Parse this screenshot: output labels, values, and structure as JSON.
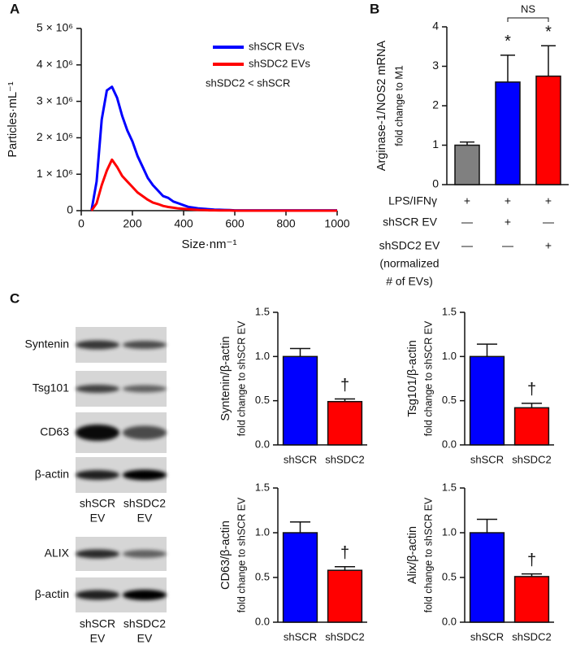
{
  "chart_data": [
    {
      "type": "line",
      "panel": "A",
      "xlabel": "Size·nm⁻¹",
      "ylabel_lines": [
        "Particles·mL⁻¹"
      ],
      "annotation": "shSDC2 < shSCR",
      "x": [
        40,
        60,
        80,
        100,
        120,
        140,
        160,
        180,
        200,
        220,
        240,
        260,
        280,
        300,
        320,
        340,
        360,
        380,
        400,
        420,
        440,
        460,
        480,
        500,
        520,
        540,
        560,
        580,
        600,
        620,
        640,
        660,
        680,
        700,
        720,
        740,
        760,
        780,
        800,
        820,
        840,
        860,
        880,
        900,
        920,
        940,
        960,
        980,
        1000
      ],
      "series": [
        {
          "name": "shSCR EVs",
          "color": "#0000ff",
          "values": [
            0,
            800000,
            2500000,
            3300000,
            3400000,
            3100000,
            2600000,
            2200000,
            1900000,
            1500000,
            1200000,
            900000,
            700000,
            550000,
            400000,
            350000,
            250000,
            200000,
            150000,
            100000,
            80000,
            60000,
            50000,
            40000,
            30000,
            25000,
            20000,
            15000,
            10000,
            10000,
            10000,
            10000,
            10000,
            10000,
            10000,
            10000,
            10000,
            10000,
            10000,
            10000,
            10000,
            10000,
            10000,
            10000,
            10000,
            10000,
            10000,
            10000,
            10000
          ]
        },
        {
          "name": "shSDC2 EVs",
          "color": "#ff0000",
          "values": [
            0,
            200000,
            700000,
            1100000,
            1400000,
            1200000,
            950000,
            800000,
            650000,
            500000,
            400000,
            300000,
            220000,
            180000,
            130000,
            100000,
            80000,
            60000,
            50000,
            40000,
            30000,
            20000,
            15000,
            10000,
            10000,
            5000,
            5000,
            5000,
            0,
            0,
            0,
            0,
            0,
            0,
            0,
            0,
            0,
            0,
            0,
            0,
            0,
            0,
            0,
            0,
            0,
            0,
            0,
            0,
            0
          ]
        }
      ],
      "xlim": [
        0,
        1000
      ],
      "xticks": [
        0,
        200,
        400,
        600,
        800,
        1000
      ],
      "ylim": [
        0,
        5000000
      ],
      "yticks": [
        0,
        {
          "value": 1000000,
          "label": "1 × 10⁶"
        },
        {
          "value": 2000000,
          "label": "2 × 10⁶"
        },
        {
          "value": 3000000,
          "label": "3 × 10⁶"
        },
        {
          "value": 4000000,
          "label": "4 × 10⁶"
        },
        {
          "value": 5000000,
          "label": "5 × 10⁶"
        }
      ]
    },
    {
      "type": "bar",
      "panel": "B",
      "ylabel_lines": [
        "Arginase-1/NOS2 mRNA",
        "fold change to M1"
      ],
      "categories": [
        null,
        null,
        null
      ],
      "values": [
        1,
        2.6,
        2.75
      ],
      "errors": [
        0.08,
        0.68,
        0.77
      ],
      "colors": [
        "#808080",
        "#0000ff",
        "#ff0000"
      ],
      "markers": [
        null,
        "*",
        "*"
      ],
      "comparison": "NS",
      "ylim": [
        0,
        4
      ],
      "yticks": [
        0,
        1,
        2,
        3,
        4
      ],
      "conditions": [
        {
          "label_lines": [
            "LPS/IFNγ"
          ],
          "marks": [
            "+",
            "+",
            "+"
          ]
        },
        {
          "label_lines": [
            "shSCR EV"
          ],
          "marks": [
            "—",
            "+",
            "—"
          ]
        },
        {
          "label_lines": [
            "shSDC2 EV",
            "(normalized",
            "# of EVs)"
          ],
          "marks": [
            "—",
            "—",
            "+"
          ]
        }
      ]
    },
    {
      "type": "bar",
      "ylabel_lines": [
        "Syntenin/β-actin",
        "fold change to shSCR EV"
      ],
      "categories": [
        "shSCR",
        "shSDC2"
      ],
      "values": [
        1,
        0.49
      ],
      "errors": [
        0.09,
        0.03
      ],
      "colors": [
        "#0000ff",
        "#ff0000"
      ],
      "markers": [
        null,
        "†"
      ],
      "ylim": [
        0,
        1.5
      ],
      "yticks": [
        {
          "value": 0,
          "label": "0.0"
        },
        0.5,
        {
          "value": 1,
          "label": "1.0"
        },
        1.5
      ]
    },
    {
      "type": "bar",
      "ylabel_lines": [
        "Tsg101/β-actin",
        "fold change to shSCR EV"
      ],
      "categories": [
        "shSCR",
        "shSDC2"
      ],
      "values": [
        1,
        0.42
      ],
      "errors": [
        0.14,
        0.05
      ],
      "colors": [
        "#0000ff",
        "#ff0000"
      ],
      "markers": [
        null,
        "†"
      ],
      "ylim": [
        0,
        1.5
      ],
      "yticks": [
        {
          "value": 0,
          "label": "0.0"
        },
        0.5,
        {
          "value": 1,
          "label": "1.0"
        },
        1.5
      ]
    },
    {
      "type": "bar",
      "ylabel_lines": [
        "CD63/β-actin",
        "fold change to shSCR EV"
      ],
      "categories": [
        "shSCR",
        "shSDC2"
      ],
      "values": [
        1,
        0.58
      ],
      "errors": [
        0.12,
        0.04
      ],
      "colors": [
        "#0000ff",
        "#ff0000"
      ],
      "markers": [
        null,
        "†"
      ],
      "ylim": [
        0,
        1.5
      ],
      "yticks": [
        {
          "value": 0,
          "label": "0.0"
        },
        0.5,
        {
          "value": 1,
          "label": "1.0"
        },
        1.5
      ]
    },
    {
      "type": "bar",
      "ylabel_lines": [
        "Alix/β-actin",
        "fold change to shSCR EV"
      ],
      "categories": [
        "shSCR",
        "shSDC2"
      ],
      "values": [
        1,
        0.51
      ],
      "errors": [
        0.15,
        0.03
      ],
      "colors": [
        "#0000ff",
        "#ff0000"
      ],
      "markers": [
        null,
        "†"
      ],
      "ylim": [
        0,
        1.5
      ],
      "yticks": [
        {
          "value": 0,
          "label": "0.0"
        },
        0.5,
        {
          "value": 1,
          "label": "1.0"
        },
        1.5
      ]
    }
  ],
  "blots": {
    "panel": "C",
    "group1": {
      "rows": [
        "Syntenin",
        "Tsg101",
        "CD63",
        "β-actin"
      ],
      "lanes": [
        [
          "shSCR",
          "EV"
        ],
        [
          "shSDC2",
          "EV"
        ]
      ]
    },
    "group2": {
      "rows": [
        "ALIX",
        "β-actin"
      ],
      "lanes": [
        [
          "shSCR",
          "EV"
        ],
        [
          "shSDC2",
          "EV"
        ]
      ]
    }
  }
}
